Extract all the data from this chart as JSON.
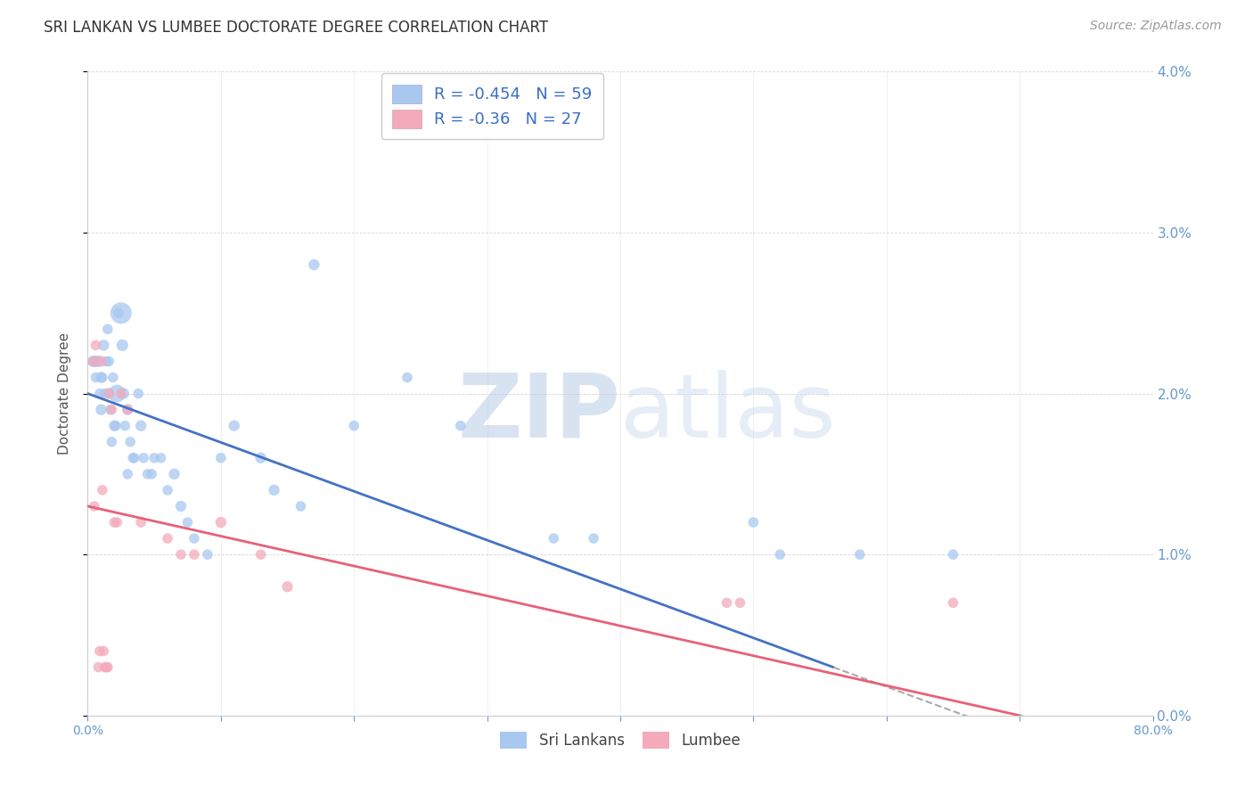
{
  "title": "SRI LANKAN VS LUMBEE DOCTORATE DEGREE CORRELATION CHART",
  "source": "Source: ZipAtlas.com",
  "ylabel": "Doctorate Degree",
  "legend_label1": "Sri Lankans",
  "legend_label2": "Lumbee",
  "R1": -0.454,
  "N1": 59,
  "R2": -0.36,
  "N2": 27,
  "xlim": [
    0.0,
    0.8
  ],
  "ylim": [
    0.0,
    0.04
  ],
  "yticks": [
    0.0,
    0.01,
    0.02,
    0.03,
    0.04
  ],
  "color_sri": "#A8C8F0",
  "color_lumbee": "#F4AABB",
  "color_line_sri": "#4472C4",
  "color_line_lumbee": "#E8607A",
  "watermark_color": "#D0E0F4",
  "blue_line_x0": 0.0,
  "blue_line_y0": 0.02,
  "blue_line_x1": 0.56,
  "blue_line_y1": 0.003,
  "pink_line_x0": 0.0,
  "pink_line_y0": 0.013,
  "pink_line_x1": 0.7,
  "pink_line_y1": 0.0,
  "sri_x": [
    0.004,
    0.005,
    0.006,
    0.007,
    0.008,
    0.009,
    0.01,
    0.01,
    0.011,
    0.012,
    0.013,
    0.014,
    0.015,
    0.016,
    0.016,
    0.017,
    0.018,
    0.019,
    0.02,
    0.021,
    0.022,
    0.023,
    0.025,
    0.026,
    0.027,
    0.028,
    0.03,
    0.03,
    0.032,
    0.034,
    0.035,
    0.038,
    0.04,
    0.042,
    0.045,
    0.048,
    0.05,
    0.055,
    0.06,
    0.065,
    0.07,
    0.075,
    0.08,
    0.09,
    0.1,
    0.11,
    0.13,
    0.14,
    0.16,
    0.17,
    0.2,
    0.24,
    0.28,
    0.35,
    0.38,
    0.5,
    0.52,
    0.58,
    0.65
  ],
  "sri_y": [
    0.022,
    0.022,
    0.021,
    0.022,
    0.022,
    0.02,
    0.019,
    0.021,
    0.021,
    0.023,
    0.02,
    0.022,
    0.024,
    0.02,
    0.022,
    0.019,
    0.017,
    0.021,
    0.018,
    0.018,
    0.02,
    0.025,
    0.025,
    0.023,
    0.02,
    0.018,
    0.019,
    0.015,
    0.017,
    0.016,
    0.016,
    0.02,
    0.018,
    0.016,
    0.015,
    0.015,
    0.016,
    0.016,
    0.014,
    0.015,
    0.013,
    0.012,
    0.011,
    0.01,
    0.016,
    0.018,
    0.016,
    0.014,
    0.013,
    0.028,
    0.018,
    0.021,
    0.018,
    0.011,
    0.011,
    0.012,
    0.01,
    0.01,
    0.01
  ],
  "sri_sizes": [
    80,
    90,
    70,
    80,
    80,
    70,
    80,
    80,
    70,
    80,
    70,
    70,
    70,
    80,
    70,
    70,
    70,
    70,
    80,
    70,
    200,
    70,
    300,
    90,
    80,
    70,
    80,
    70,
    70,
    70,
    70,
    70,
    80,
    70,
    70,
    70,
    70,
    70,
    70,
    80,
    80,
    70,
    70,
    70,
    70,
    80,
    80,
    80,
    70,
    80,
    70,
    70,
    70,
    70,
    70,
    70,
    70,
    70,
    70
  ],
  "lumbee_x": [
    0.004,
    0.005,
    0.006,
    0.008,
    0.009,
    0.01,
    0.011,
    0.012,
    0.013,
    0.014,
    0.015,
    0.016,
    0.018,
    0.02,
    0.022,
    0.025,
    0.03,
    0.04,
    0.06,
    0.07,
    0.08,
    0.1,
    0.13,
    0.15,
    0.48,
    0.49,
    0.65
  ],
  "lumbee_y": [
    0.022,
    0.013,
    0.023,
    0.003,
    0.004,
    0.022,
    0.014,
    0.004,
    0.003,
    0.003,
    0.003,
    0.02,
    0.019,
    0.012,
    0.012,
    0.02,
    0.019,
    0.012,
    0.011,
    0.01,
    0.01,
    0.012,
    0.01,
    0.008,
    0.007,
    0.007,
    0.007
  ],
  "lumbee_sizes": [
    70,
    70,
    70,
    70,
    70,
    80,
    70,
    70,
    70,
    70,
    70,
    70,
    70,
    70,
    70,
    70,
    70,
    70,
    70,
    70,
    70,
    80,
    70,
    80,
    70,
    70,
    70
  ],
  "background_color": "#FFFFFF",
  "grid_color": "#CCCCCC"
}
